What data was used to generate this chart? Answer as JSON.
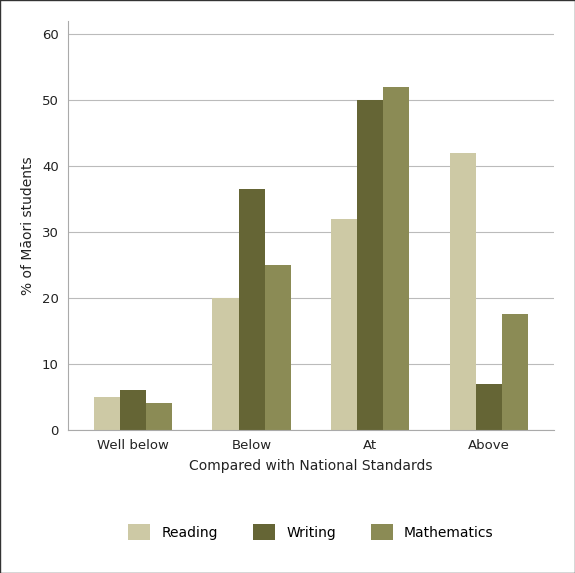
{
  "categories": [
    "Well below",
    "Below",
    "At",
    "Above"
  ],
  "series": {
    "Reading": [
      5.0,
      20.0,
      32.0,
      42.0
    ],
    "Writing": [
      6.0,
      36.5,
      50.0,
      7.0
    ],
    "Mathematics": [
      4.0,
      25.0,
      52.0,
      17.5
    ]
  },
  "colors": {
    "Reading": "#cdc9a5",
    "Writing": "#656535",
    "Mathematics": "#8b8b55"
  },
  "xlabel": "Compared with National Standards",
  "ylabel": "% of Māori students",
  "ylim": [
    0,
    62
  ],
  "yticks": [
    0,
    10,
    20,
    30,
    40,
    50,
    60
  ],
  "bar_width": 0.22,
  "background_color": "#ffffff",
  "grid_color": "#bbbbbb",
  "figsize": [
    5.75,
    5.73
  ],
  "dpi": 100,
  "border_color": "#333333"
}
